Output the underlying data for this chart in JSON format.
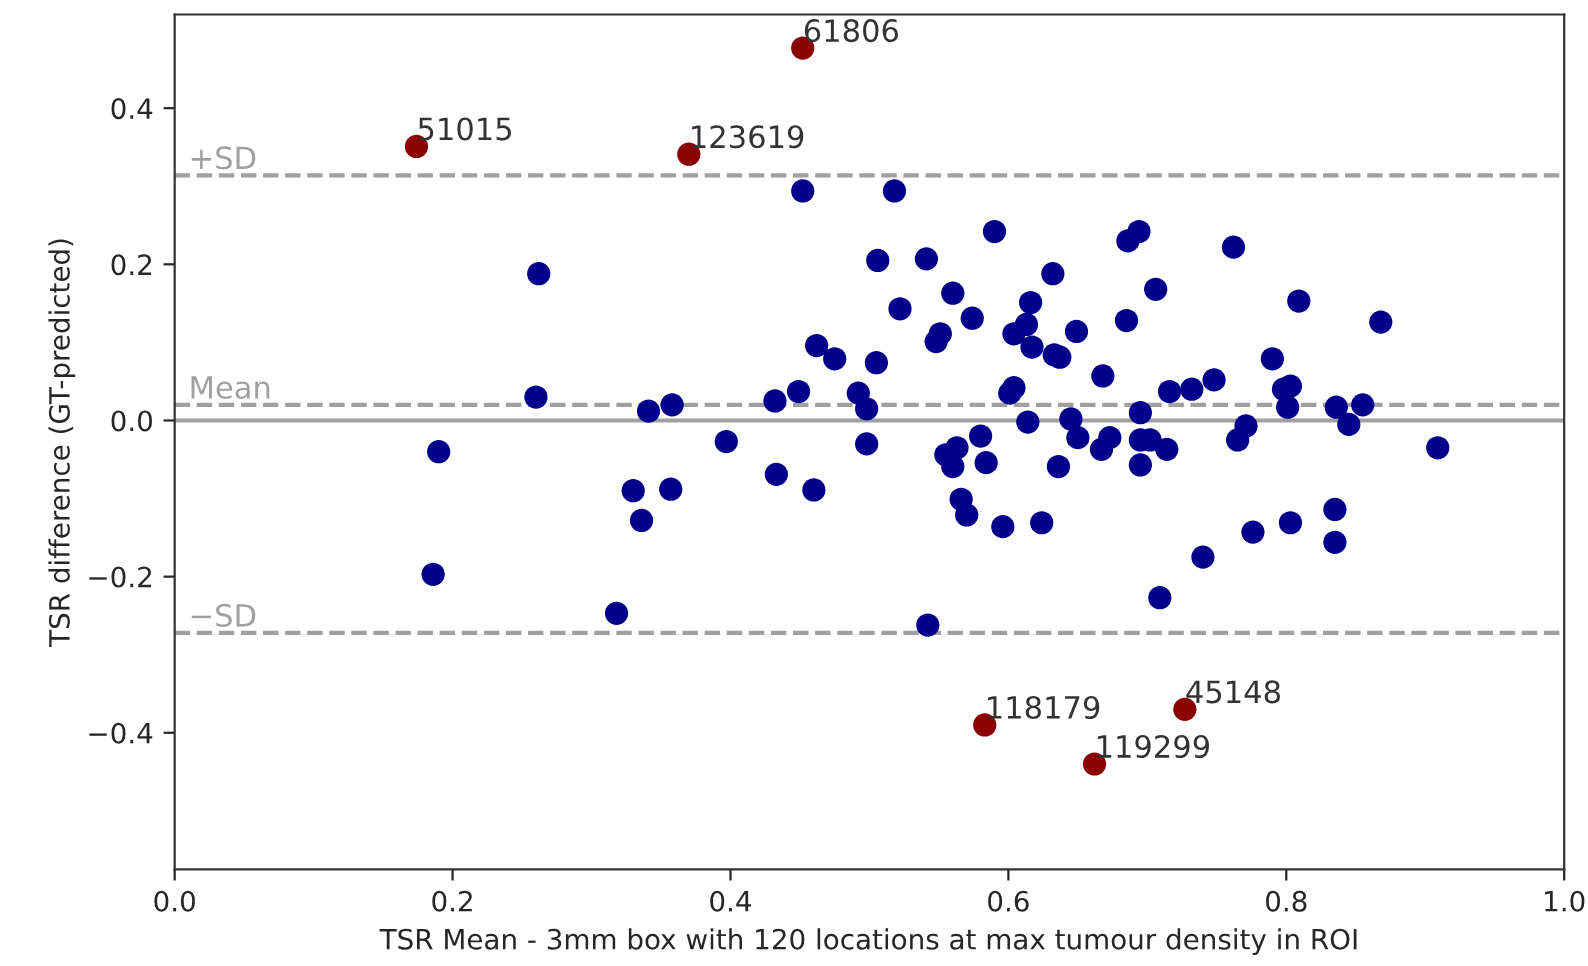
{
  "chart_data": {
    "type": "scatter",
    "xlabel": "TSR Mean - 3mm box with 120 locations at max tumour density in ROI",
    "ylabel": "TSR difference (GT-predicted)",
    "xlim": [
      0.0,
      1.0
    ],
    "ylim": [
      -0.575,
      0.52
    ],
    "xticks": [
      {
        "value": 0.0,
        "label": "0.0"
      },
      {
        "value": 0.2,
        "label": "0.2"
      },
      {
        "value": 0.4,
        "label": "0.4"
      },
      {
        "value": 0.6,
        "label": "0.6"
      },
      {
        "value": 0.8,
        "label": "0.8"
      },
      {
        "value": 1.0,
        "label": "1.0"
      }
    ],
    "yticks": [
      {
        "value": -0.4,
        "label": "−0.4"
      },
      {
        "value": -0.2,
        "label": "−0.2"
      },
      {
        "value": 0.0,
        "label": "0.0"
      },
      {
        "value": 0.2,
        "label": "0.2"
      },
      {
        "value": 0.4,
        "label": "0.4"
      }
    ],
    "grid": false,
    "marker": "circle",
    "series": [
      {
        "color": "#00008b",
        "x": [
          0.262,
          0.26,
          0.19,
          0.186,
          0.318,
          0.33,
          0.336,
          0.341,
          0.358,
          0.357,
          0.397,
          0.432,
          0.433,
          0.449,
          0.46,
          0.452,
          0.462,
          0.475,
          0.492,
          0.498,
          0.498,
          0.506,
          0.505,
          0.518,
          0.522,
          0.541,
          0.542,
          0.551,
          0.548,
          0.56,
          0.555,
          0.563,
          0.56,
          0.566,
          0.57,
          0.574,
          0.58,
          0.584,
          0.59,
          0.596,
          0.604,
          0.601,
          0.604,
          0.616,
          0.613,
          0.614,
          0.617,
          0.624,
          0.632,
          0.633,
          0.637,
          0.636,
          0.645,
          0.649,
          0.65,
          0.668,
          0.667,
          0.673,
          0.686,
          0.685,
          0.694,
          0.695,
          0.695,
          0.695,
          0.702,
          0.706,
          0.709,
          0.714,
          0.716,
          0.74,
          0.732,
          0.748,
          0.762,
          0.765,
          0.771,
          0.776,
          0.79,
          0.798,
          0.801,
          0.803,
          0.803,
          0.809,
          0.835,
          0.835,
          0.836,
          0.845,
          0.855,
          0.868,
          0.909
        ],
        "values": [
          0.188,
          0.03,
          -0.04,
          -0.197,
          -0.247,
          -0.09,
          -0.128,
          0.012,
          0.02,
          -0.088,
          -0.027,
          0.025,
          -0.069,
          0.037,
          -0.089,
          0.294,
          0.096,
          0.079,
          0.035,
          0.015,
          -0.03,
          0.205,
          0.074,
          0.294,
          0.143,
          0.207,
          -0.262,
          0.111,
          0.101,
          0.163,
          -0.044,
          -0.035,
          -0.059,
          -0.101,
          -0.121,
          0.131,
          -0.02,
          -0.054,
          0.242,
          -0.136,
          0.111,
          0.035,
          0.042,
          0.151,
          0.123,
          -0.002,
          0.094,
          -0.131,
          0.188,
          0.084,
          0.081,
          -0.059,
          0.002,
          0.114,
          -0.022,
          0.057,
          -0.037,
          -0.022,
          0.23,
          0.128,
          0.242,
          0.01,
          -0.025,
          -0.057,
          -0.025,
          0.168,
          -0.227,
          -0.037,
          0.037,
          -0.175,
          0.04,
          0.052,
          0.222,
          -0.025,
          -0.007,
          -0.143,
          0.079,
          0.04,
          0.017,
          -0.131,
          0.044,
          0.153,
          -0.114,
          -0.156,
          0.017,
          -0.005,
          0.02,
          0.126,
          -0.035
        ]
      },
      {
        "color": "#8b0000",
        "x": [
          0.174,
          0.452,
          0.37,
          0.583,
          0.727,
          0.662
        ],
        "values": [
          0.351,
          0.477,
          0.341,
          -0.39,
          -0.37,
          -0.44
        ]
      }
    ],
    "annotations": [
      {
        "text": "51015",
        "x": 0.174,
        "y": 0.351
      },
      {
        "text": "61806",
        "x": 0.452,
        "y": 0.477
      },
      {
        "text": "123619",
        "x": 0.37,
        "y": 0.341
      },
      {
        "text": "118179",
        "x": 0.583,
        "y": -0.39
      },
      {
        "text": "45148",
        "x": 0.727,
        "y": -0.37
      },
      {
        "text": "119299",
        "x": 0.662,
        "y": -0.44
      }
    ],
    "ref_lines": [
      {
        "axis": "y",
        "value": 0.314,
        "label": "+SD",
        "color": "#a0a0a0",
        "line_style": "dashed"
      },
      {
        "axis": "y",
        "value": 0.02,
        "label": "Mean",
        "color": "#a0a0a0",
        "line_style": "dashed"
      },
      {
        "axis": "y",
        "value": -0.272,
        "label": "−SD",
        "color": "#a0a0a0",
        "line_style": "dashed"
      },
      {
        "axis": "y",
        "value": 0.0,
        "color": "#a0a0a0",
        "line_style": "solid"
      }
    ]
  }
}
